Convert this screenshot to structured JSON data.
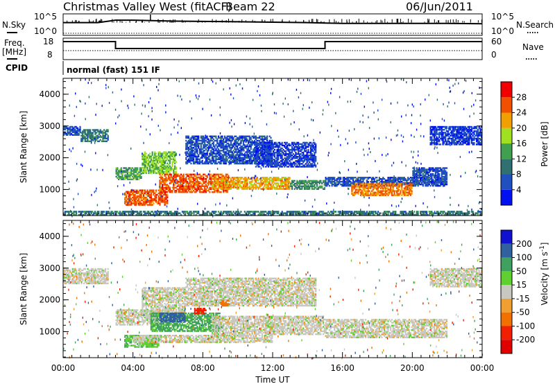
{
  "header": {
    "title": "Christmas Valley West (fitACF)",
    "beam": "Beam 22",
    "date": "06/Jun/2011"
  },
  "top_panels": {
    "nsky_label": "N.Sky",
    "nsearch_label": "N.Search",
    "noise_ticks": [
      "10^5",
      "10^0"
    ],
    "freq_label_line1": "Freq.",
    "freq_label_line2": "[MHz]",
    "freq_ticks": [
      "18",
      "8"
    ],
    "nave_ticks": [
      "60",
      "0"
    ],
    "nave_label": "Nave",
    "cpid_label": "CPID",
    "cpid_text": "normal (fast) 151 IF"
  },
  "axes": {
    "x_label": "Time UT",
    "x_ticks": [
      "00:00",
      "04:00",
      "08:00",
      "12:00",
      "16:00",
      "20:00",
      "00:00"
    ],
    "y_label": "Slant Range [km]",
    "y_ticks": [
      "1000",
      "2000",
      "3000",
      "4000"
    ]
  },
  "power_colorbar": {
    "label": "Power [dB]",
    "ticks": [
      "4",
      "8",
      "12",
      "16",
      "20",
      "24",
      "28"
    ],
    "colors": [
      "#0010f0",
      "#2050c0",
      "#307070",
      "#40a050",
      "#a0e020",
      "#f0a000",
      "#f05000",
      "#f00000"
    ]
  },
  "velocity_colorbar": {
    "label": "Velocity [m s",
    "label_sup": "-1",
    "label_end": "]",
    "ticks": [
      "200",
      "100",
      "50",
      "15",
      "-15",
      "-50",
      "-100",
      "-200"
    ],
    "colors": [
      "#1010d0",
      "#3060a0",
      "#40a060",
      "#60d030",
      "#c8c8c0",
      "#f0a030",
      "#f07000",
      "#f02000",
      "#e00000"
    ]
  },
  "chart_data": [
    {
      "type": "line",
      "title": "N.Sky / N.Search",
      "x": [
        0,
        2,
        3,
        4,
        6,
        8,
        10,
        12,
        14,
        15,
        16,
        18,
        20,
        22,
        24
      ],
      "series": [
        {
          "name": "N.Sky",
          "values": [
            3.0,
            3.0,
            3.6,
            3.6,
            3.4,
            3.3,
            3.2,
            3.1,
            3.0,
            2.9,
            2.8,
            2.8,
            2.8,
            2.8,
            2.7
          ]
        }
      ],
      "ylim": [
        0,
        5
      ],
      "scale": "log"
    },
    {
      "type": "line",
      "title": "Freq / Nave",
      "x": [
        0,
        3.0,
        3.0,
        15.0,
        15.0,
        24
      ],
      "series": [
        {
          "name": "Freq.",
          "values": [
            15.5,
            15.5,
            10.5,
            10.5,
            15.5,
            15.5
          ]
        },
        {
          "name": "Nave",
          "values": [
            12,
            12,
            12,
            12,
            12,
            12
          ]
        }
      ],
      "ylim": [
        8,
        18
      ]
    },
    {
      "type": "heatmap",
      "title": "Power [dB]",
      "xlabel": "Time UT",
      "ylabel": "Slant Range [km]",
      "xlim": [
        0,
        24
      ],
      "ylim": [
        180,
        4500
      ],
      "clim": [
        0,
        30
      ],
      "regions": [
        {
          "t0": 0.0,
          "t1": 1.0,
          "r0": 2700,
          "r1": 3000,
          "value": 6
        },
        {
          "t0": 1.0,
          "t1": 2.6,
          "r0": 2500,
          "r1": 2900,
          "value": 10
        },
        {
          "t0": 3.0,
          "t1": 4.5,
          "r0": 1300,
          "r1": 1700,
          "value": 14
        },
        {
          "t0": 4.5,
          "t1": 6.5,
          "r0": 1500,
          "r1": 2200,
          "value": 16
        },
        {
          "t0": 3.5,
          "t1": 6.0,
          "r0": 500,
          "r1": 1000,
          "value": 26
        },
        {
          "t0": 5.5,
          "t1": 9.5,
          "r0": 900,
          "r1": 1500,
          "value": 26
        },
        {
          "t0": 8.5,
          "t1": 13.0,
          "r0": 1000,
          "r1": 1400,
          "value": 22
        },
        {
          "t0": 13.0,
          "t1": 15.0,
          "r0": 1000,
          "r1": 1300,
          "value": 12
        },
        {
          "t0": 7.0,
          "t1": 12.0,
          "r0": 1800,
          "r1": 2700,
          "value": 6
        },
        {
          "t0": 11.0,
          "t1": 14.5,
          "r0": 1700,
          "r1": 2500,
          "value": 5
        },
        {
          "t0": 15.0,
          "t1": 22.0,
          "r0": 1100,
          "r1": 1400,
          "value": 6
        },
        {
          "t0": 16.5,
          "t1": 20.0,
          "r0": 800,
          "r1": 1200,
          "value": 24
        },
        {
          "t0": 20.0,
          "t1": 22.0,
          "r0": 1200,
          "r1": 1700,
          "value": 6
        },
        {
          "t0": 21.0,
          "t1": 24.0,
          "r0": 2400,
          "r1": 3000,
          "value": 5
        },
        {
          "t0": 0.0,
          "t1": 24.0,
          "r0": 180,
          "r1": 330,
          "value": 10
        }
      ]
    },
    {
      "type": "heatmap",
      "title": "Velocity [m s-1]",
      "xlabel": "Time UT",
      "ylabel": "Slant Range [km]",
      "xlim": [
        0,
        24
      ],
      "ylim": [
        180,
        4500
      ],
      "clim": [
        -200,
        200
      ],
      "regions": [
        {
          "t0": 0.0,
          "t1": 2.6,
          "r0": 2500,
          "r1": 3000,
          "value": 0
        },
        {
          "t0": 3.0,
          "t1": 6.0,
          "r0": 1200,
          "r1": 1700,
          "value": 0
        },
        {
          "t0": 4.5,
          "t1": 7.0,
          "r0": 1500,
          "r1": 2400,
          "value": 0
        },
        {
          "t0": 5.0,
          "t1": 9.0,
          "r0": 1000,
          "r1": 1600,
          "value": 60
        },
        {
          "t0": 5.5,
          "t1": 7.0,
          "r0": 1300,
          "r1": 1600,
          "value": 180
        },
        {
          "t0": 3.5,
          "t1": 5.5,
          "r0": 500,
          "r1": 900,
          "value": 40
        },
        {
          "t0": 4.0,
          "t1": 12.0,
          "r0": 650,
          "r1": 900,
          "value": 0
        },
        {
          "t0": 8.5,
          "t1": 15.0,
          "r0": 900,
          "r1": 1500,
          "value": 0
        },
        {
          "t0": 7.0,
          "t1": 14.5,
          "r0": 1800,
          "r1": 2700,
          "value": 0
        },
        {
          "t0": 15.0,
          "t1": 22.0,
          "r0": 800,
          "r1": 1400,
          "value": 0
        },
        {
          "t0": 21.0,
          "t1": 24.0,
          "r0": 2400,
          "r1": 3000,
          "value": 0
        },
        {
          "t0": 7.5,
          "t1": 8.2,
          "r0": 1550,
          "r1": 1750,
          "value": -180
        },
        {
          "t0": 9.0,
          "t1": 9.5,
          "r0": 1800,
          "r1": 2000,
          "value": -80
        }
      ]
    }
  ]
}
